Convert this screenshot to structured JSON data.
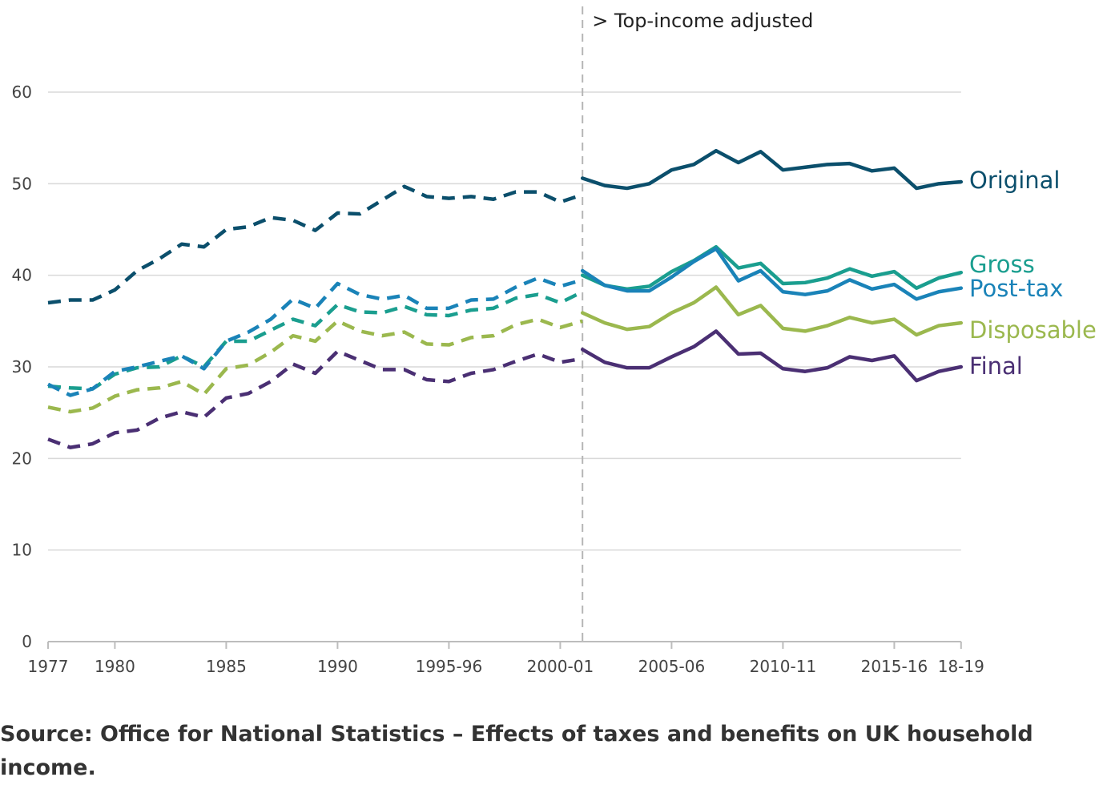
{
  "chart_data": {
    "type": "line",
    "annotation": "> Top-income adjusted",
    "source": "Source: Office for National Statistics – Effects of taxes and benefits on UK household income.",
    "ylim": [
      0,
      60
    ],
    "y_ticks": [
      0,
      10,
      20,
      30,
      40,
      50,
      60
    ],
    "grid": "horizontal",
    "x_tick_labels": [
      "1977",
      "1980",
      "1985",
      "1990",
      "1995-96",
      "2000-01",
      "2005-06",
      "2010-11",
      "2015-16",
      "18-19"
    ],
    "x_categories": [
      "1977",
      "1978",
      "1979",
      "1980",
      "1981",
      "1982",
      "1983",
      "1984",
      "1985",
      "1986",
      "1987",
      "1988",
      "1989",
      "1990",
      "1991",
      "1992",
      "1993",
      "1994",
      "1995-96",
      "1996-97",
      "1997-98",
      "1998-99",
      "1999-00",
      "2000-01",
      "2001-02",
      "2002-03",
      "2003-04",
      "2004-05",
      "2005-06",
      "2006-07",
      "2007-08",
      "2008-09",
      "2009-10",
      "2010-11",
      "2011-12",
      "2012-13",
      "2013-14",
      "2014-15",
      "2015-16",
      "2016-17",
      "2017-18",
      "18-19"
    ],
    "adjustment_break_after": "2000-01",
    "series": [
      {
        "name": "Original",
        "color": "#0b4f6c",
        "unadjusted": [
          37.0,
          37.3,
          37.3,
          38.4,
          40.5,
          41.8,
          43.4,
          43.1,
          45.0,
          45.3,
          46.3,
          46.0,
          44.9,
          46.8,
          46.7,
          48.2,
          49.7,
          48.6,
          48.4,
          48.6,
          48.3,
          49.1,
          49.1,
          48.0,
          48.8
        ],
        "adjusted": [
          50.6,
          49.8,
          49.5,
          50.0,
          51.5,
          52.1,
          53.6,
          52.3,
          53.5,
          51.5,
          51.8,
          52.1,
          52.2,
          51.4,
          51.7,
          49.5,
          50.0,
          50.2
        ]
      },
      {
        "name": "Gross",
        "color": "#1a9e8f",
        "unadjusted": [
          27.9,
          27.7,
          27.6,
          29.2,
          29.9,
          30.0,
          31.2,
          30.0,
          32.8,
          32.8,
          34.0,
          35.2,
          34.5,
          36.8,
          36.0,
          35.9,
          36.6,
          35.7,
          35.6,
          36.2,
          36.4,
          37.5,
          37.9,
          37.0,
          38.2
        ],
        "adjusted": [
          40.0,
          38.9,
          38.5,
          38.8,
          40.4,
          41.6,
          43.1,
          40.8,
          41.3,
          39.1,
          39.2,
          39.7,
          40.7,
          39.9,
          40.4,
          38.6,
          39.7,
          40.3
        ]
      },
      {
        "name": "Post-tax",
        "color": "#1a83b8",
        "unadjusted": [
          28.1,
          26.9,
          27.6,
          29.5,
          30.0,
          30.6,
          31.2,
          29.8,
          32.8,
          33.8,
          35.2,
          37.4,
          36.4,
          39.1,
          37.9,
          37.4,
          37.8,
          36.4,
          36.4,
          37.3,
          37.4,
          38.7,
          39.7,
          38.8,
          39.5
        ],
        "adjusted": [
          40.5,
          38.9,
          38.3,
          38.3,
          39.8,
          41.5,
          42.9,
          39.4,
          40.5,
          38.2,
          37.9,
          38.3,
          39.5,
          38.5,
          39.0,
          37.4,
          38.2,
          38.6
        ]
      },
      {
        "name": "Disposable",
        "color": "#9bb84e",
        "unadjusted": [
          25.6,
          25.1,
          25.5,
          26.8,
          27.5,
          27.7,
          28.4,
          27.0,
          29.8,
          30.2,
          31.6,
          33.4,
          32.8,
          35.0,
          33.9,
          33.4,
          33.8,
          32.5,
          32.4,
          33.2,
          33.4,
          34.6,
          35.2,
          34.3,
          35.0
        ],
        "adjusted": [
          35.9,
          34.8,
          34.1,
          34.4,
          35.9,
          37.0,
          38.7,
          35.7,
          36.7,
          34.2,
          33.9,
          34.5,
          35.4,
          34.8,
          35.2,
          33.5,
          34.5,
          34.8
        ]
      },
      {
        "name": "Final",
        "color": "#4a2f73",
        "unadjusted": [
          22.1,
          21.2,
          21.6,
          22.8,
          23.1,
          24.4,
          25.1,
          24.5,
          26.6,
          27.1,
          28.4,
          30.3,
          29.3,
          31.7,
          30.7,
          29.7,
          29.7,
          28.6,
          28.4,
          29.3,
          29.7,
          30.6,
          31.4,
          30.5,
          30.9
        ],
        "adjusted": [
          31.9,
          30.5,
          29.9,
          29.9,
          31.1,
          32.2,
          33.9,
          31.4,
          31.5,
          29.8,
          29.5,
          29.9,
          31.1,
          30.7,
          31.2,
          28.5,
          29.5,
          30.0
        ]
      }
    ]
  }
}
